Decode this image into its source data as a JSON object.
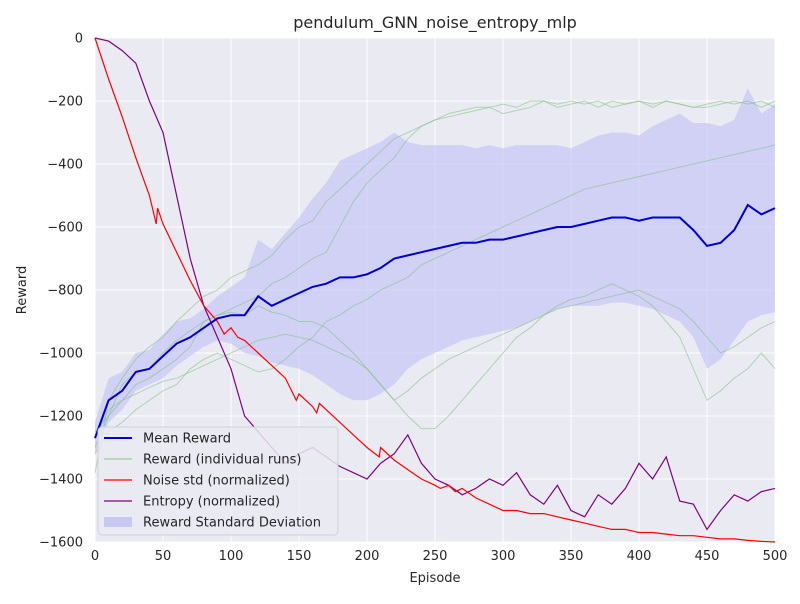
{
  "chart_data": {
    "type": "line",
    "title": "pendulum_GNN_noise_entropy_mlp",
    "xlabel": "Episode",
    "ylabel": "Reward",
    "xlim": [
      0,
      500
    ],
    "ylim": [
      -1600,
      0
    ],
    "xticks": [
      0,
      50,
      100,
      150,
      200,
      250,
      300,
      350,
      400,
      450,
      500
    ],
    "yticks": [
      0,
      -200,
      -400,
      -600,
      -800,
      -1000,
      -1200,
      -1400,
      -1600
    ],
    "grid": true,
    "legend_position": "lower-left",
    "legend": [
      {
        "label": "Mean Reward",
        "kind": "line",
        "color": "#0000cc"
      },
      {
        "label": "Reward (individual runs)",
        "kind": "line",
        "color": "#7fbf7f"
      },
      {
        "label": "Noise std (normalized)",
        "kind": "line",
        "color": "#ff0000"
      },
      {
        "label": "Entropy (normalized)",
        "kind": "line",
        "color": "#800080"
      },
      {
        "label": "Reward Standard Deviation",
        "kind": "area",
        "color": "#c8c8f5"
      }
    ],
    "series": [
      {
        "name": "Mean Reward",
        "color": "#0000cc",
        "x": [
          0,
          10,
          20,
          30,
          40,
          50,
          60,
          70,
          80,
          90,
          100,
          110,
          120,
          130,
          140,
          150,
          160,
          170,
          180,
          190,
          200,
          210,
          220,
          230,
          240,
          250,
          260,
          270,
          280,
          290,
          300,
          310,
          320,
          330,
          340,
          350,
          360,
          370,
          380,
          390,
          400,
          410,
          420,
          430,
          440,
          450,
          460,
          470,
          480,
          490,
          500
        ],
        "y": [
          -1270,
          -1150,
          -1120,
          -1060,
          -1050,
          -1010,
          -970,
          -950,
          -920,
          -890,
          -880,
          -880,
          -820,
          -850,
          -830,
          -810,
          -790,
          -780,
          -760,
          -760,
          -750,
          -730,
          -700,
          -690,
          -680,
          -670,
          -660,
          -650,
          -650,
          -640,
          -640,
          -630,
          -620,
          -610,
          -600,
          -600,
          -590,
          -580,
          -570,
          -570,
          -580,
          -570,
          -570,
          -570,
          -610,
          -660,
          -650,
          -610,
          -530,
          -560,
          -540
        ]
      },
      {
        "name": "Reward (individual runs)",
        "color": "#7fbf7f",
        "x": [
          0,
          10,
          20,
          30,
          40,
          50,
          60,
          70,
          80,
          90,
          100,
          110,
          120,
          130,
          140,
          150,
          160,
          170,
          180,
          190,
          200,
          210,
          220,
          230,
          240,
          250,
          260,
          270,
          280,
          290,
          300,
          310,
          320,
          330,
          340,
          350,
          360,
          370,
          380,
          390,
          400,
          410,
          420,
          430,
          440,
          450,
          460,
          470,
          480,
          490,
          500
        ],
        "runs": [
          [
            -1380,
            -1150,
            -1080,
            -1020,
            -980,
            -950,
            -900,
            -860,
            -820,
            -800,
            -760,
            -740,
            -720,
            -690,
            -640,
            -600,
            -580,
            -520,
            -480,
            -440,
            -400,
            -360,
            -320,
            -300,
            -280,
            -260,
            -240,
            -230,
            -220,
            -220,
            -210,
            -220,
            -200,
            -200,
            -220,
            -210,
            -200,
            -220,
            -200,
            -210,
            -200,
            -220,
            -200,
            -210,
            -220,
            -210,
            -200,
            -210,
            -200,
            -220,
            -200
          ],
          [
            -1300,
            -1200,
            -1100,
            -1060,
            -1050,
            -1000,
            -960,
            -930,
            -900,
            -880,
            -860,
            -840,
            -820,
            -780,
            -760,
            -730,
            -700,
            -680,
            -600,
            -520,
            -460,
            -420,
            -380,
            -320,
            -280,
            -260,
            -250,
            -240,
            -230,
            -220,
            -240,
            -230,
            -220,
            -200,
            -210,
            -200,
            -210,
            -200,
            -220,
            -210,
            -200,
            -210,
            -200,
            -210,
            -220,
            -220,
            -210,
            -200,
            -210,
            -200,
            -220
          ],
          [
            -1270,
            -1180,
            -1150,
            -1100,
            -1080,
            -1050,
            -1020,
            -980,
            -900,
            -880,
            -870,
            -880,
            -850,
            -870,
            -880,
            -900,
            -900,
            -920,
            -960,
            -1000,
            -1050,
            -1100,
            -1150,
            -1200,
            -1240,
            -1240,
            -1200,
            -1150,
            -1100,
            -1050,
            -1000,
            -950,
            -920,
            -880,
            -850,
            -830,
            -820,
            -800,
            -780,
            -800,
            -820,
            -850,
            -900,
            -950,
            -1050,
            -1150,
            -1120,
            -1080,
            -1050,
            -1000,
            -1050
          ],
          [
            -1320,
            -1250,
            -1220,
            -1180,
            -1150,
            -1120,
            -1100,
            -1050,
            -1020,
            -1000,
            -1020,
            -1040,
            -1060,
            -1050,
            -1020,
            -980,
            -950,
            -900,
            -880,
            -850,
            -830,
            -800,
            -780,
            -760,
            -720,
            -700,
            -680,
            -660,
            -640,
            -620,
            -600,
            -580,
            -560,
            -540,
            -520,
            -500,
            -480,
            -470,
            -460,
            -450,
            -440,
            -430,
            -420,
            -410,
            -400,
            -390,
            -380,
            -370,
            -360,
            -350,
            -340
          ],
          [
            -1250,
            -1200,
            -1150,
            -1130,
            -1110,
            -1090,
            -1080,
            -1060,
            -1040,
            -1020,
            -1000,
            -980,
            -960,
            -950,
            -940,
            -950,
            -960,
            -980,
            -1000,
            -1020,
            -1050,
            -1100,
            -1150,
            -1120,
            -1080,
            -1050,
            -1020,
            -1000,
            -980,
            -960,
            -940,
            -920,
            -900,
            -880,
            -860,
            -850,
            -840,
            -830,
            -820,
            -810,
            -800,
            -820,
            -840,
            -860,
            -900,
            -950,
            -1000,
            -980,
            -950,
            -920,
            -900
          ]
        ]
      },
      {
        "name": "Noise std (normalized)",
        "color": "#ff0000",
        "x": [
          0,
          10,
          20,
          30,
          40,
          45,
          46,
          50,
          60,
          70,
          80,
          90,
          95,
          100,
          105,
          110,
          120,
          130,
          140,
          148,
          150,
          160,
          163,
          165,
          170,
          180,
          190,
          200,
          209,
          210,
          220,
          230,
          240,
          250,
          254,
          260,
          265,
          270,
          280,
          290,
          300,
          310,
          320,
          330,
          340,
          350,
          360,
          370,
          380,
          390,
          400,
          410,
          420,
          430,
          440,
          450,
          460,
          470,
          480,
          490,
          500
        ],
        "y": [
          0,
          -130,
          -250,
          -380,
          -500,
          -590,
          -540,
          -590,
          -680,
          -770,
          -850,
          -900,
          -940,
          -920,
          -950,
          -960,
          -1000,
          -1040,
          -1080,
          -1150,
          -1130,
          -1170,
          -1190,
          -1160,
          -1180,
          -1220,
          -1260,
          -1300,
          -1330,
          -1300,
          -1340,
          -1370,
          -1400,
          -1420,
          -1430,
          -1420,
          -1440,
          -1430,
          -1460,
          -1480,
          -1500,
          -1500,
          -1510,
          -1510,
          -1520,
          -1530,
          -1540,
          -1550,
          -1560,
          -1560,
          -1570,
          -1570,
          -1575,
          -1580,
          -1580,
          -1585,
          -1590,
          -1590,
          -1595,
          -1598,
          -1600
        ]
      },
      {
        "name": "Entropy (normalized)",
        "color": "#800080",
        "x": [
          0,
          10,
          20,
          30,
          40,
          50,
          60,
          70,
          80,
          90,
          100,
          110,
          120,
          130,
          140,
          150,
          160,
          170,
          180,
          190,
          200,
          210,
          220,
          230,
          240,
          250,
          260,
          270,
          280,
          290,
          300,
          310,
          320,
          330,
          340,
          350,
          360,
          370,
          380,
          390,
          400,
          410,
          420,
          430,
          440,
          450,
          460,
          470,
          480,
          490,
          500
        ],
        "y": [
          0,
          -10,
          -40,
          -80,
          -200,
          -300,
          -500,
          -700,
          -850,
          -950,
          -1050,
          -1200,
          -1250,
          -1300,
          -1350,
          -1320,
          -1300,
          -1330,
          -1360,
          -1380,
          -1400,
          -1350,
          -1320,
          -1260,
          -1350,
          -1400,
          -1420,
          -1450,
          -1430,
          -1400,
          -1420,
          -1380,
          -1450,
          -1480,
          -1420,
          -1500,
          -1520,
          -1450,
          -1480,
          -1430,
          -1350,
          -1400,
          -1330,
          -1470,
          -1480,
          -1560,
          -1500,
          -1450,
          -1470,
          -1440,
          -1430
        ]
      },
      {
        "name": "Reward Standard Deviation",
        "color": "#c8c8f5",
        "kind": "band",
        "x": [
          0,
          10,
          20,
          30,
          40,
          50,
          60,
          70,
          80,
          90,
          100,
          110,
          120,
          130,
          140,
          150,
          160,
          170,
          180,
          190,
          200,
          210,
          220,
          230,
          240,
          250,
          260,
          270,
          280,
          290,
          300,
          310,
          320,
          330,
          340,
          350,
          360,
          370,
          380,
          390,
          400,
          410,
          420,
          430,
          440,
          450,
          460,
          470,
          480,
          490,
          500
        ],
        "lower": [
          -1320,
          -1220,
          -1180,
          -1120,
          -1100,
          -1080,
          -1040,
          -1010,
          -980,
          -960,
          -970,
          -1000,
          -1010,
          -1030,
          -1040,
          -1050,
          -1070,
          -1100,
          -1130,
          -1150,
          -1150,
          -1130,
          -1100,
          -1050,
          -1020,
          -1000,
          -980,
          -960,
          -950,
          -940,
          -930,
          -920,
          -900,
          -880,
          -860,
          -850,
          -850,
          -850,
          -840,
          -840,
          -850,
          -860,
          -880,
          -900,
          -950,
          -1050,
          -1020,
          -960,
          -900,
          -880,
          -870
        ],
        "upper": [
          -1220,
          -1080,
          -1060,
          -1000,
          -990,
          -940,
          -900,
          -890,
          -860,
          -820,
          -790,
          -760,
          -640,
          -670,
          -620,
          -570,
          -510,
          -460,
          -390,
          -370,
          -350,
          -330,
          -300,
          -330,
          -340,
          -340,
          -340,
          -340,
          -350,
          -340,
          -350,
          -340,
          -340,
          -340,
          -340,
          -350,
          -330,
          -310,
          -300,
          -300,
          -310,
          -280,
          -260,
          -240,
          -270,
          -270,
          -280,
          -260,
          -160,
          -240,
          -210
        ]
      }
    ]
  }
}
